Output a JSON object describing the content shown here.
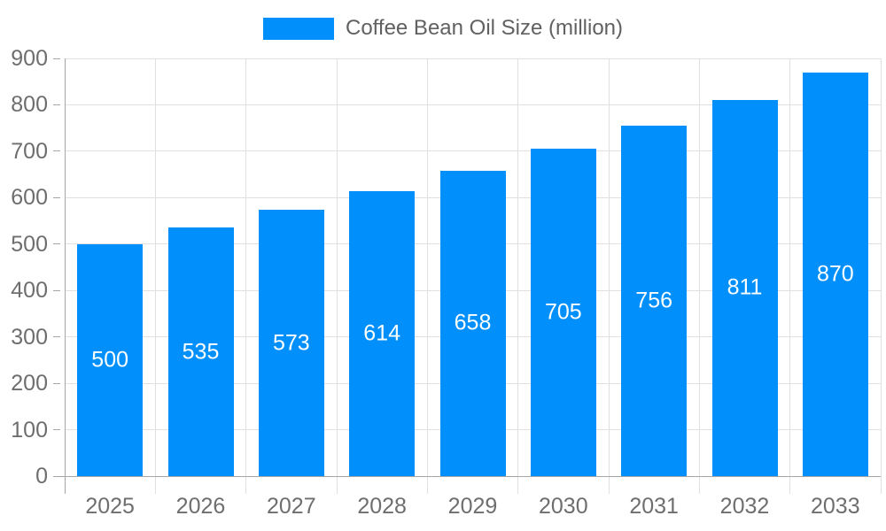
{
  "legend": {
    "label": "Coffee Bean Oil Size (million)"
  },
  "chart_data": {
    "type": "bar",
    "title": "Coffee Bean Oil Size (million)",
    "categories": [
      "2025",
      "2026",
      "2027",
      "2028",
      "2029",
      "2030",
      "2031",
      "2032",
      "2033"
    ],
    "series": [
      {
        "name": "Coffee Bean Oil Size (million)",
        "values": [
          500,
          535,
          573,
          614,
          658,
          705,
          756,
          811,
          870
        ]
      }
    ],
    "xlabel": "",
    "ylabel": "",
    "ylim": [
      0,
      900
    ],
    "ytick_step": 100,
    "yticks": [
      0,
      100,
      200,
      300,
      400,
      500,
      600,
      700,
      800,
      900
    ],
    "grid": true,
    "legend_position": "top",
    "value_label_position": "inside-center",
    "colors": {
      "bar": "#008FFB",
      "grid": "#e0e0e0",
      "axis": "#a6a6a6",
      "axis_label": "#6e6e6e",
      "legend_text": "#616161",
      "value_label": "#ffffff",
      "background": "#ffffff"
    }
  }
}
